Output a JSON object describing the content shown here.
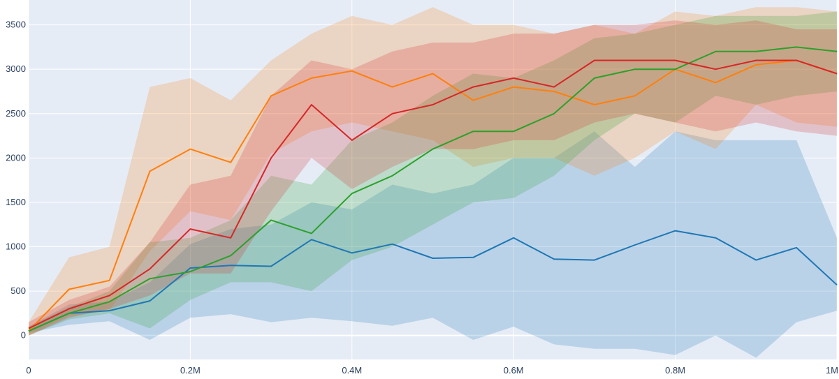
{
  "chart_data": {
    "type": "line",
    "title": "",
    "xlabel": "",
    "ylabel": "",
    "xlim": [
      0,
      1000000
    ],
    "ylim": [
      -270,
      3780
    ],
    "grid": true,
    "legend": "none",
    "x_ticks": [
      {
        "value": 0,
        "label": "0"
      },
      {
        "value": 200000,
        "label": "0.2M"
      },
      {
        "value": 400000,
        "label": "0.4M"
      },
      {
        "value": 600000,
        "label": "0.6M"
      },
      {
        "value": 800000,
        "label": "0.8M"
      },
      {
        "value": 1000000,
        "label": "1M"
      }
    ],
    "y_ticks": [
      {
        "value": 0,
        "label": "0"
      },
      {
        "value": 500,
        "label": "500"
      },
      {
        "value": 1000,
        "label": "1000"
      },
      {
        "value": 1500,
        "label": "1500"
      },
      {
        "value": 2000,
        "label": "2000"
      },
      {
        "value": 2500,
        "label": "2500"
      },
      {
        "value": 3000,
        "label": "3000"
      },
      {
        "value": 3500,
        "label": "3500"
      }
    ],
    "x": [
      0,
      50000,
      100000,
      150000,
      200000,
      250000,
      300000,
      350000,
      400000,
      450000,
      500000,
      550000,
      600000,
      650000,
      700000,
      750000,
      800000,
      850000,
      900000,
      950000,
      1000000
    ],
    "series": [
      {
        "color": "#1f77b4",
        "mean": [
          50,
          250,
          280,
          390,
          760,
          790,
          780,
          1080,
          930,
          1030,
          870,
          880,
          1100,
          860,
          850,
          1020,
          1180,
          1100,
          850,
          990,
          570
        ],
        "lower": [
          30,
          120,
          160,
          -50,
          200,
          240,
          150,
          200,
          160,
          110,
          200,
          -50,
          100,
          -100,
          -150,
          -150,
          -220,
          0,
          -250,
          150,
          280
        ],
        "upper": [
          100,
          350,
          380,
          600,
          1030,
          1200,
          1250,
          1500,
          1420,
          1700,
          1600,
          1700,
          2000,
          2000,
          2300,
          1900,
          2300,
          2200,
          2200,
          2200,
          1100
        ]
      },
      {
        "color": "#ff7f0e",
        "mean": [
          50,
          520,
          620,
          1850,
          2100,
          1950,
          2700,
          2900,
          2980,
          2800,
          2950,
          2650,
          2800,
          2750,
          2600,
          2700,
          3000,
          2850,
          3050,
          3100,
          2950
        ],
        "lower": [
          0,
          220,
          280,
          950,
          1400,
          1300,
          2050,
          2300,
          2400,
          2300,
          2200,
          1900,
          2000,
          2000,
          1800,
          2000,
          2300,
          2100,
          2600,
          2400,
          2350
        ],
        "upper": [
          150,
          880,
          1000,
          2800,
          2900,
          2650,
          3100,
          3400,
          3600,
          3500,
          3700,
          3500,
          3500,
          3400,
          3500,
          3400,
          3650,
          3600,
          3700,
          3700,
          3650
        ]
      },
      {
        "color": "#2ca02c",
        "mean": [
          50,
          250,
          380,
          640,
          720,
          900,
          1300,
          1150,
          1600,
          1800,
          2100,
          2300,
          2300,
          2500,
          2900,
          3000,
          3000,
          3200,
          3200,
          3250,
          3200
        ],
        "lower": [
          0,
          180,
          250,
          80,
          400,
          600,
          600,
          500,
          850,
          1000,
          1250,
          1500,
          1550,
          1800,
          2200,
          2500,
          2400,
          2700,
          2600,
          2700,
          2750
        ],
        "upper": [
          100,
          320,
          500,
          1050,
          1100,
          1300,
          1800,
          1700,
          2200,
          2400,
          2700,
          2950,
          2900,
          3100,
          3350,
          3400,
          3500,
          3600,
          3600,
          3600,
          3650
        ]
      },
      {
        "color": "#d62728",
        "mean": [
          80,
          300,
          450,
          750,
          1200,
          1100,
          2000,
          2600,
          2200,
          2500,
          2600,
          2800,
          2900,
          2800,
          3100,
          3100,
          3100,
          3000,
          3100,
          3100,
          2950
        ],
        "lower": [
          0,
          200,
          300,
          450,
          700,
          700,
          1400,
          2000,
          1650,
          1900,
          2100,
          2100,
          2200,
          2200,
          2400,
          2500,
          2400,
          2300,
          2400,
          2300,
          2250
        ],
        "upper": [
          150,
          400,
          550,
          1050,
          1700,
          1800,
          2700,
          3100,
          3000,
          3200,
          3300,
          3300,
          3400,
          3400,
          3500,
          3500,
          3550,
          3500,
          3550,
          3450,
          3450
        ]
      }
    ]
  }
}
